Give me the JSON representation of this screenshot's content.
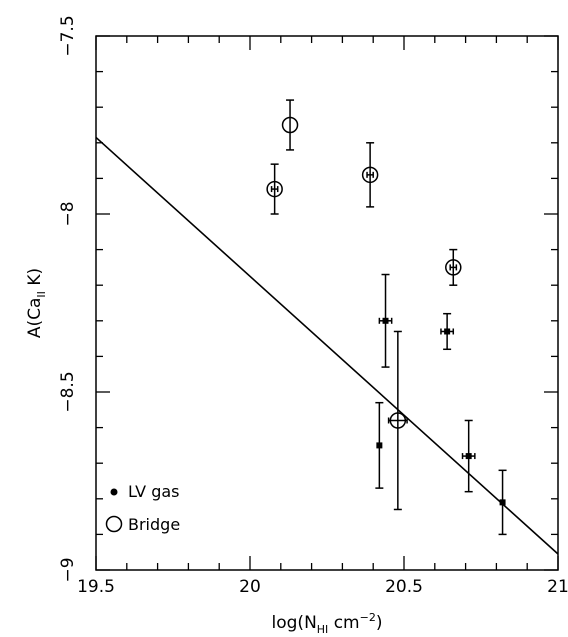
{
  "chart_data": {
    "type": "scatter",
    "title": "",
    "xlabel": {
      "base": "log(N",
      "sub": "HI",
      "unit": " cm",
      "sup": "−2",
      "close": ")"
    },
    "ylabel": {
      "base": "A(Ca",
      "sub": "II",
      "tail": " K)"
    },
    "xlim": [
      19.5,
      21.0
    ],
    "ylim": [
      -9.0,
      -7.5
    ],
    "x_major_ticks": [
      19.5,
      20.0,
      20.5,
      21.0
    ],
    "x_tick_labels": [
      "19.5",
      "20",
      "20.5",
      "21"
    ],
    "y_major_ticks": [
      -9.0,
      -8.5,
      -8.0,
      -7.5
    ],
    "y_tick_labels": [
      "−9",
      "−8.5",
      "−8",
      "−7.5"
    ],
    "x_minor_step": 0.1,
    "y_minor_step": 0.1,
    "grid": false,
    "legend_position": "bottom-left",
    "series": [
      {
        "name": "LV gas",
        "marker": "dot",
        "points": [
          {
            "x": 20.44,
            "y": -8.3,
            "yerr": [
              0.13,
              0.13
            ],
            "xerr": 0.02
          },
          {
            "x": 20.42,
            "y": -8.65,
            "yerr": [
              0.12,
              0.12
            ],
            "xerr": 0.0
          },
          {
            "x": 20.64,
            "y": -8.33,
            "yerr": [
              0.05,
              0.05
            ],
            "xerr": 0.02
          },
          {
            "x": 20.71,
            "y": -8.68,
            "yerr": [
              0.1,
              0.1
            ],
            "xerr": 0.02
          },
          {
            "x": 20.82,
            "y": -8.81,
            "yerr": [
              0.09,
              0.09
            ],
            "xerr": 0.0
          }
        ]
      },
      {
        "name": "Bridge",
        "marker": "open-circle",
        "points": [
          {
            "x": 20.13,
            "y": -7.75,
            "yerr": [
              0.07,
              0.07
            ],
            "xerr": 0.0
          },
          {
            "x": 20.08,
            "y": -7.93,
            "yerr": [
              0.07,
              0.07
            ],
            "xerr": 0.01
          },
          {
            "x": 20.39,
            "y": -7.89,
            "yerr": [
              0.09,
              0.09
            ],
            "xerr": 0.01
          },
          {
            "x": 20.66,
            "y": -8.15,
            "yerr": [
              0.05,
              0.05
            ],
            "xerr": 0.01
          },
          {
            "x": 20.48,
            "y": -8.58,
            "yerr": [
              0.25,
              0.25
            ],
            "xerr": 0.03
          }
        ]
      }
    ],
    "fit_line": {
      "x": [
        19.5,
        21.0
      ],
      "y": [
        -7.785,
        -8.955
      ]
    }
  }
}
